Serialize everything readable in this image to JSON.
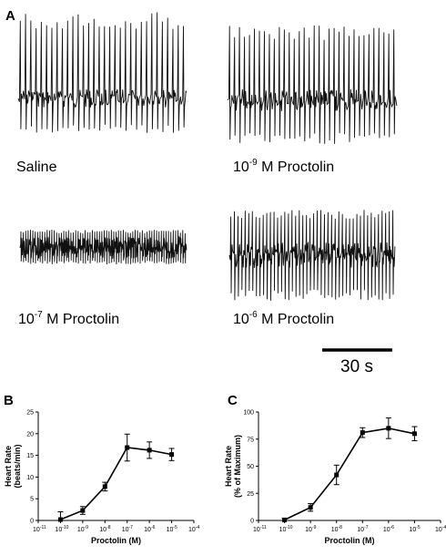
{
  "panels": {
    "a": "A",
    "b": "B",
    "c": "C"
  },
  "traces": [
    {
      "id": "saline",
      "label_base": "Saline",
      "label_exp": "",
      "label_tail": ""
    },
    {
      "id": "p9",
      "label_base": "10",
      "label_exp": "-9",
      "label_tail": " M Proctolin"
    },
    {
      "id": "p7",
      "label_base": "10",
      "label_exp": "-7",
      "label_tail": " M Proctolin"
    },
    {
      "id": "p6",
      "label_base": "10",
      "label_exp": "-6",
      "label_tail": " M Proctolin"
    }
  ],
  "scale_bar": {
    "label": "30 s"
  },
  "chart_data": [
    {
      "type": "line",
      "panel": "B",
      "xlabel": "Proctolin (M)",
      "ylabel_line1": "Heart Rate",
      "ylabel_line2": "(beats/min)",
      "x_scale": "log",
      "x_ticks": [
        {
          "base": "10",
          "exp": "-11"
        },
        {
          "base": "10",
          "exp": "-10"
        },
        {
          "base": "10",
          "exp": "-9"
        },
        {
          "base": "10",
          "exp": "-8"
        },
        {
          "base": "10",
          "exp": "-7"
        },
        {
          "base": "10",
          "exp": "-6"
        },
        {
          "base": "10",
          "exp": "-5"
        },
        {
          "base": "10",
          "exp": "-4"
        }
      ],
      "xlim": [
        1e-11,
        0.0001
      ],
      "ylim": [
        0,
        25
      ],
      "y_ticks": [
        0,
        5,
        10,
        15,
        20,
        25
      ],
      "x": [
        1e-10,
        1e-09,
        1e-08,
        1e-07,
        1e-06,
        1e-05
      ],
      "values": [
        0.2,
        2.3,
        7.8,
        16.8,
        16.2,
        15.2
      ],
      "error": [
        1.8,
        0.9,
        1.0,
        3.1,
        1.9,
        1.4
      ],
      "marker": "square",
      "color": "#000000"
    },
    {
      "type": "line",
      "panel": "C",
      "xlabel": "Proctolin (M)",
      "ylabel_line1": "Heart Rate",
      "ylabel_line2": "(% of Maximum)",
      "x_scale": "log",
      "x_ticks": [
        {
          "base": "10",
          "exp": "-11"
        },
        {
          "base": "10",
          "exp": "-10"
        },
        {
          "base": "10",
          "exp": "-9"
        },
        {
          "base": "10",
          "exp": "-8"
        },
        {
          "base": "10",
          "exp": "-7"
        },
        {
          "base": "10",
          "exp": "-6"
        },
        {
          "base": "10",
          "exp": "-5"
        },
        {
          "base": "10",
          "exp": "-4"
        }
      ],
      "xlim": [
        1e-11,
        0.0001
      ],
      "ylim": [
        0,
        100
      ],
      "y_ticks": [
        0,
        25,
        50,
        75,
        100
      ],
      "x": [
        1e-10,
        1e-09,
        1e-08,
        1e-07,
        1e-06,
        1e-05
      ],
      "values": [
        0.5,
        12,
        42,
        81,
        85,
        80
      ],
      "error": [
        1.5,
        3.5,
        9,
        4.5,
        9.5,
        6.5
      ],
      "marker": "square",
      "color": "#000000"
    }
  ]
}
